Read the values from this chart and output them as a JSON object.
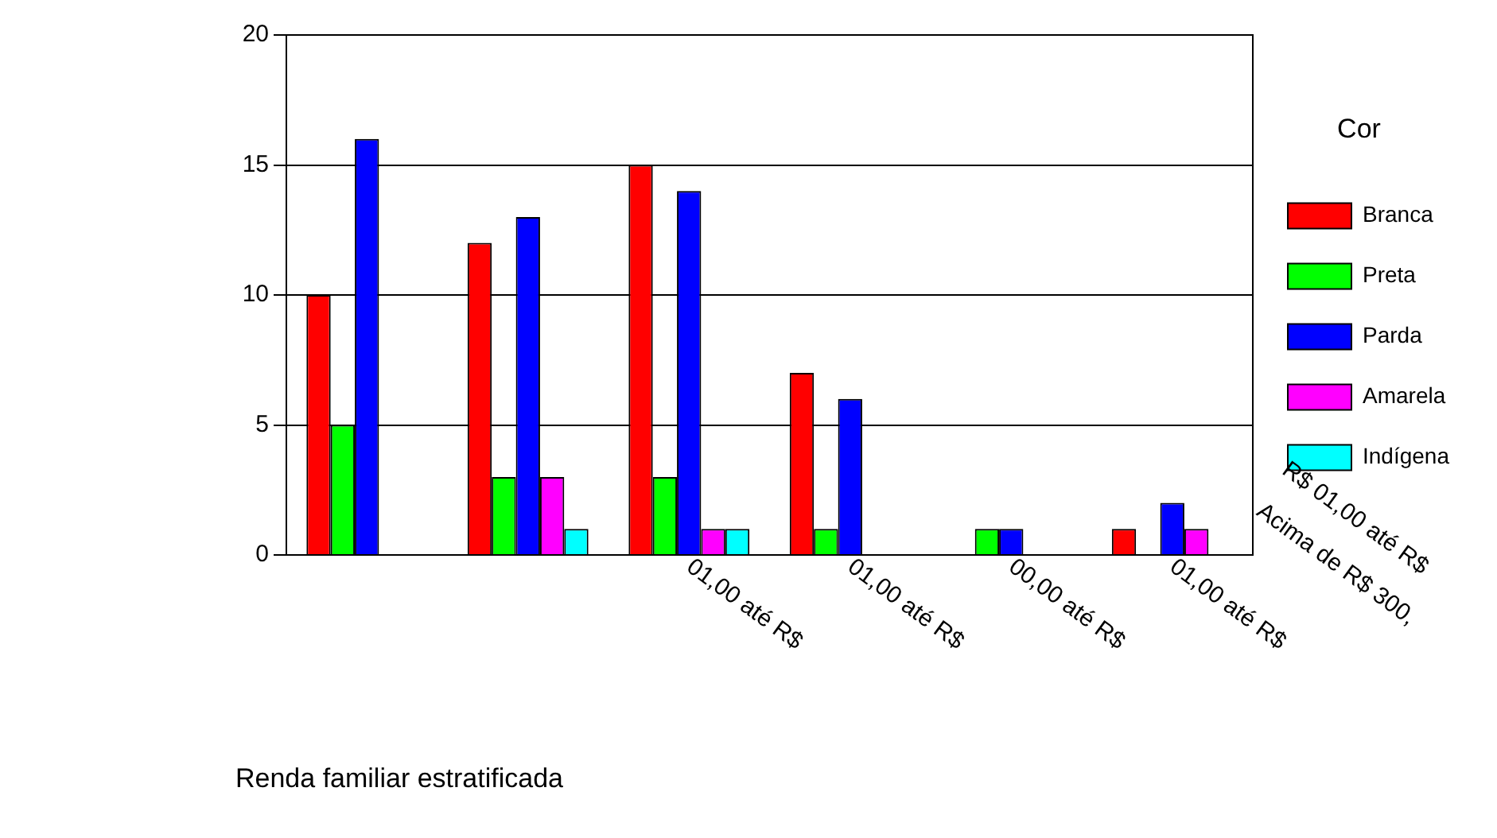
{
  "chart_data": {
    "type": "bar",
    "xlabel": "Renda familiar estratificada",
    "legend_title": "Cor",
    "legend": "right",
    "categories": [
      null,
      null,
      "01,00 até R$",
      "01,00 até R$",
      "00,00 até R$",
      "01,00 até R$"
    ],
    "series": [
      {
        "name": "Branca",
        "color": "#ff0000",
        "values": [
          10,
          12,
          15,
          7,
          0,
          1
        ]
      },
      {
        "name": "Preta",
        "color": "#00ff00",
        "values": [
          5,
          3,
          3,
          1,
          1,
          0
        ]
      },
      {
        "name": "Parda",
        "color": "#0000ff",
        "values": [
          16,
          13,
          14,
          6,
          1,
          2
        ]
      },
      {
        "name": "Amarela",
        "color": "#ff00ff",
        "values": [
          0,
          3,
          1,
          0,
          0,
          1
        ]
      },
      {
        "name": "Indígena",
        "color": "#00ffff",
        "values": [
          0,
          1,
          1,
          0,
          0,
          0
        ]
      }
    ],
    "annotations": [
      "R$ 01,00 até R$",
      "Acima de R$ 300,"
    ],
    "ylim": [
      0,
      20
    ],
    "yticks": [
      0,
      5,
      10,
      15,
      20
    ],
    "grid": "y"
  }
}
